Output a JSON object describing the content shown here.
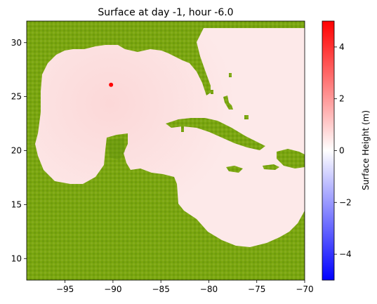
{
  "chart_data": {
    "type": "heatmap",
    "title": "Surface at day  -1, hour -6.0",
    "xlim": [
      -99,
      -70
    ],
    "ylim": [
      8,
      32
    ],
    "x_ticks": [
      -95,
      -90,
      -85,
      -80,
      -75,
      -70
    ],
    "x_tick_labels": [
      "−95",
      "−90",
      "−85",
      "−80",
      "−75",
      "−70"
    ],
    "y_ticks": [
      10,
      15,
      20,
      25,
      30
    ],
    "y_tick_labels": [
      "10",
      "15",
      "20",
      "25",
      "30"
    ],
    "xlabel": "",
    "ylabel": "",
    "grid": false,
    "field": {
      "description_values": "sea surface height shown by color; near-uniform small positive values over water",
      "background_value": 0.2,
      "peak_value": 0.4,
      "peak_center": [
        -90.2,
        26.1
      ]
    },
    "land_color": "#7aa60f",
    "marker": {
      "x": -90.2,
      "y": 26.1,
      "color": "#ff0000"
    },
    "colorbar": {
      "label": "Surface Height (m)",
      "vmin": -5,
      "vmax": 5,
      "ticks": [
        4,
        2,
        0,
        -2,
        -4
      ],
      "tick_labels": [
        "4",
        "2",
        "0",
        "−2",
        "−4"
      ],
      "colormap": "bwr",
      "colors": {
        "low": "#0000ff",
        "mid": "#ffffff",
        "high": "#ff0000"
      }
    }
  }
}
